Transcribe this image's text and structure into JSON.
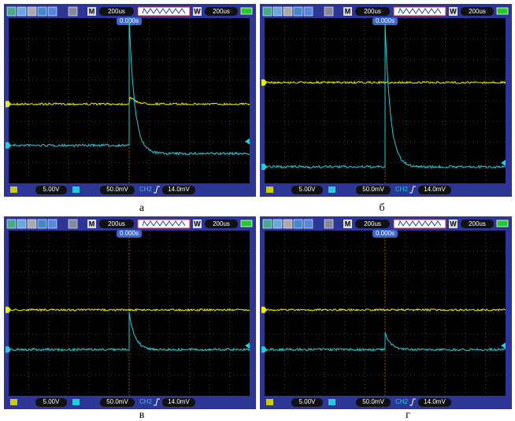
{
  "panels": [
    {
      "caption": "а",
      "mode": "M",
      "time_base": "200us",
      "window": "W",
      "window_time": "200us",
      "trigger_time": "0.000s",
      "ch1_scale": "5.00V",
      "ch2_scale": "50.0mV",
      "trigger_source": "CH2",
      "trigger_level": "14.0mV"
    },
    {
      "caption": "б",
      "mode": "M",
      "time_base": "200us",
      "window": "W",
      "window_time": "200us",
      "trigger_time": "0.000s",
      "ch1_scale": "5.00V",
      "ch2_scale": "50.0mV",
      "trigger_source": "CH2",
      "trigger_level": "14.0mV"
    },
    {
      "caption": "в",
      "mode": "M",
      "time_base": "200us",
      "window": "W",
      "window_time": "200us",
      "trigger_time": "0.000s",
      "ch1_scale": "5.00V",
      "ch2_scale": "50.0mV",
      "trigger_source": "CH2",
      "trigger_level": "14.0mV"
    },
    {
      "caption": "г",
      "mode": "M",
      "time_base": "200us",
      "window": "W",
      "window_time": "200us",
      "trigger_time": "0.000s",
      "ch1_scale": "5.00V",
      "ch2_scale": "50.0mV",
      "trigger_source": "CH2",
      "trigger_level": "14.0mV"
    }
  ]
}
